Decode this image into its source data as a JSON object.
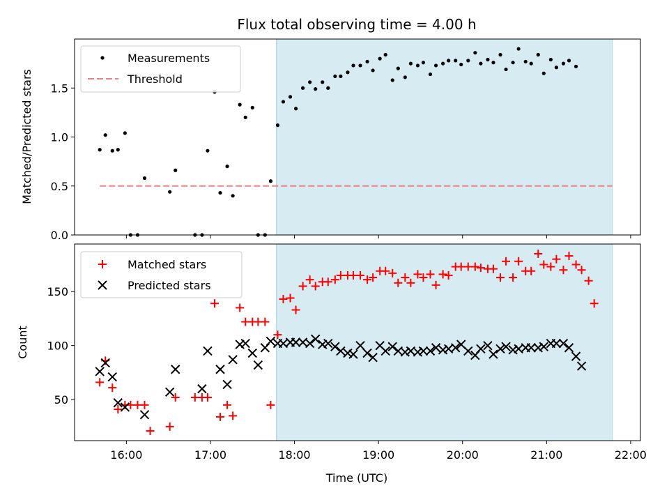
{
  "chart_data": [
    {
      "type": "scatter",
      "title": "Flux total observing time = 4.00 h",
      "ylabel": "Matched/Predicted stars",
      "xlim": [
        "15:23",
        "22:07"
      ],
      "ylim": [
        0,
        2.0
      ],
      "yticks": [
        "0.0",
        "0.5",
        "1.0",
        "1.5"
      ],
      "xticks": [
        "16:00",
        "17:00",
        "18:00",
        "19:00",
        "20:00",
        "21:00",
        "22:00"
      ],
      "shaded_interval": [
        "17:47",
        "21:47"
      ],
      "shade_color": "#add8e6",
      "legend_position": "upper-left",
      "threshold": {
        "name": "Threshold",
        "value": 0.5,
        "x_range": [
          "15:41",
          "21:47"
        ],
        "color": "#f08080"
      },
      "series": [
        {
          "name": "Measurements",
          "color": "#000000",
          "marker": "dot",
          "x": [
            "15:41",
            "15:45",
            "15:50",
            "15:54",
            "15:59",
            "16:03",
            "16:08",
            "16:13",
            "16:17",
            "16:22",
            "16:26",
            "16:31",
            "16:35",
            "16:40",
            "16:44",
            "16:49",
            "16:54",
            "16:58",
            "17:03",
            "17:07",
            "17:12",
            "17:16",
            "17:21",
            "17:25",
            "17:30",
            "17:34",
            "17:39",
            "17:43",
            "17:48",
            "17:52",
            "17:57",
            "18:01",
            "18:06",
            "18:11",
            "18:15",
            "18:20",
            "18:24",
            "18:29",
            "18:33",
            "18:38",
            "18:42",
            "18:47",
            "18:52",
            "18:56",
            "19:01",
            "19:05",
            "19:10",
            "19:14",
            "19:19",
            "19:23",
            "19:28",
            "19:32",
            "19:37",
            "19:41",
            "19:46",
            "19:50",
            "19:55",
            "19:59",
            "20:04",
            "20:09",
            "20:13",
            "20:18",
            "20:22",
            "20:27",
            "20:31",
            "20:36",
            "20:40",
            "20:45",
            "20:49",
            "20:54",
            "20:58",
            "21:03",
            "21:07",
            "21:12",
            "21:16",
            "21:21",
            "21:25",
            "21:30",
            "21:34",
            "21:39",
            "21:43"
          ],
          "y": [
            0.87,
            1.02,
            0.86,
            0.87,
            1.04,
            0.0,
            0.0,
            0.58,
            null,
            null,
            null,
            0.44,
            0.66,
            null,
            null,
            0.0,
            0.0,
            0.86,
            1.46,
            0.43,
            0.7,
            0.4,
            1.33,
            1.2,
            1.3,
            0.0,
            0.0,
            0.55,
            1.12,
            1.36,
            1.41,
            1.29,
            1.5,
            1.56,
            1.49,
            1.56,
            1.5,
            1.62,
            1.62,
            1.66,
            1.73,
            1.73,
            1.77,
            1.68,
            1.8,
            1.84,
            1.58,
            1.7,
            1.61,
            1.75,
            1.73,
            1.76,
            1.64,
            1.73,
            1.75,
            1.78,
            1.78,
            1.74,
            1.78,
            1.86,
            1.75,
            1.79,
            1.76,
            1.84,
            1.69,
            1.76,
            1.9,
            1.77,
            1.75,
            1.84,
            1.65,
            1.79,
            1.71,
            1.75,
            1.78,
            1.72,
            null,
            null,
            null,
            null,
            null
          ]
        }
      ]
    },
    {
      "type": "scatter",
      "xlabel": "Time (UTC)",
      "ylabel": "Count",
      "xlim": [
        "15:23",
        "22:07"
      ],
      "ylim": [
        12,
        194
      ],
      "yticks": [
        "50",
        "100",
        "150"
      ],
      "xticks": [
        "16:00",
        "17:00",
        "18:00",
        "19:00",
        "20:00",
        "21:00",
        "22:00"
      ],
      "shaded_interval": [
        "17:47",
        "21:47"
      ],
      "shade_color": "#add8e6",
      "legend_position": "upper-left",
      "series": [
        {
          "name": "Matched stars",
          "color": "#ff0000",
          "marker": "plus",
          "x": [
            "15:41",
            "15:45",
            "15:50",
            "15:54",
            "15:59",
            "16:03",
            "16:08",
            "16:13",
            "16:17",
            "16:22",
            "16:26",
            "16:31",
            "16:35",
            "16:40",
            "16:44",
            "16:49",
            "16:54",
            "16:58",
            "17:03",
            "17:07",
            "17:12",
            "17:16",
            "17:21",
            "17:25",
            "17:30",
            "17:34",
            "17:39",
            "17:43",
            "17:48",
            "17:52",
            "17:57",
            "18:01",
            "18:06",
            "18:11",
            "18:15",
            "18:20",
            "18:24",
            "18:29",
            "18:33",
            "18:38",
            "18:42",
            "18:47",
            "18:52",
            "18:56",
            "19:01",
            "19:05",
            "19:10",
            "19:14",
            "19:19",
            "19:23",
            "19:28",
            "19:32",
            "19:37",
            "19:41",
            "19:46",
            "19:50",
            "19:55",
            "19:59",
            "20:04",
            "20:09",
            "20:13",
            "20:18",
            "20:22",
            "20:27",
            "20:31",
            "20:36",
            "20:40",
            "20:45",
            "20:49",
            "20:54",
            "20:58",
            "21:03",
            "21:07",
            "21:12",
            "21:16",
            "21:21",
            "21:25",
            "21:30",
            "21:34",
            "21:39",
            "21:43"
          ],
          "y": [
            66,
            86,
            61,
            41,
            45,
            45,
            45,
            45,
            21,
            null,
            null,
            25,
            52,
            null,
            null,
            52,
            52,
            52,
            139,
            34,
            45,
            35,
            135,
            122,
            122,
            122,
            122,
            45,
            110,
            143,
            144,
            133,
            155,
            161,
            155,
            159,
            159,
            161,
            165,
            165,
            165,
            165,
            161,
            163,
            169,
            169,
            167,
            158,
            163,
            158,
            166,
            163,
            166,
            156,
            166,
            165,
            173,
            173,
            173,
            173,
            172,
            171,
            171,
            163,
            178,
            163,
            178,
            169,
            169,
            185,
            175,
            173,
            180,
            170,
            183,
            175,
            170,
            160,
            139,
            null,
            null
          ]
        },
        {
          "name": "Predicted stars",
          "color": "#000000",
          "marker": "x",
          "x": [
            "15:41",
            "15:45",
            "15:50",
            "15:54",
            "15:59",
            "16:03",
            "16:08",
            "16:13",
            "16:17",
            "16:22",
            "16:26",
            "16:31",
            "16:35",
            "16:40",
            "16:44",
            "16:49",
            "16:54",
            "16:58",
            "17:03",
            "17:07",
            "17:12",
            "17:16",
            "17:21",
            "17:25",
            "17:30",
            "17:34",
            "17:39",
            "17:43",
            "17:48",
            "17:52",
            "17:57",
            "18:01",
            "18:06",
            "18:11",
            "18:15",
            "18:20",
            "18:24",
            "18:29",
            "18:33",
            "18:38",
            "18:42",
            "18:47",
            "18:52",
            "18:56",
            "19:01",
            "19:05",
            "19:10",
            "19:14",
            "19:19",
            "19:23",
            "19:28",
            "19:32",
            "19:37",
            "19:41",
            "19:46",
            "19:50",
            "19:55",
            "19:59",
            "20:04",
            "20:09",
            "20:13",
            "20:18",
            "20:22",
            "20:27",
            "20:31",
            "20:36",
            "20:40",
            "20:45",
            "20:49",
            "20:54",
            "20:58",
            "21:03",
            "21:07",
            "21:12",
            "21:16",
            "21:21",
            "21:25",
            "21:30",
            "21:34",
            "21:39",
            "21:43"
          ],
          "y": [
            76,
            84,
            71,
            47,
            43,
            null,
            null,
            36,
            null,
            null,
            null,
            57,
            78,
            null,
            null,
            null,
            60,
            95,
            null,
            78,
            64,
            87,
            101,
            102,
            93,
            82,
            98,
            104,
            102,
            102,
            103,
            103,
            103,
            102,
            106,
            101,
            102,
            99,
            95,
            93,
            92,
            100,
            93,
            89,
            100,
            95,
            99,
            95,
            94,
            95,
            94,
            95,
            95,
            98,
            96,
            97,
            98,
            101,
            95,
            91,
            97,
            100,
            92,
            97,
            99,
            96,
            97,
            98,
            98,
            98,
            99,
            102,
            102,
            102,
            98,
            90,
            81,
            null,
            null,
            null,
            null
          ]
        }
      ]
    }
  ]
}
